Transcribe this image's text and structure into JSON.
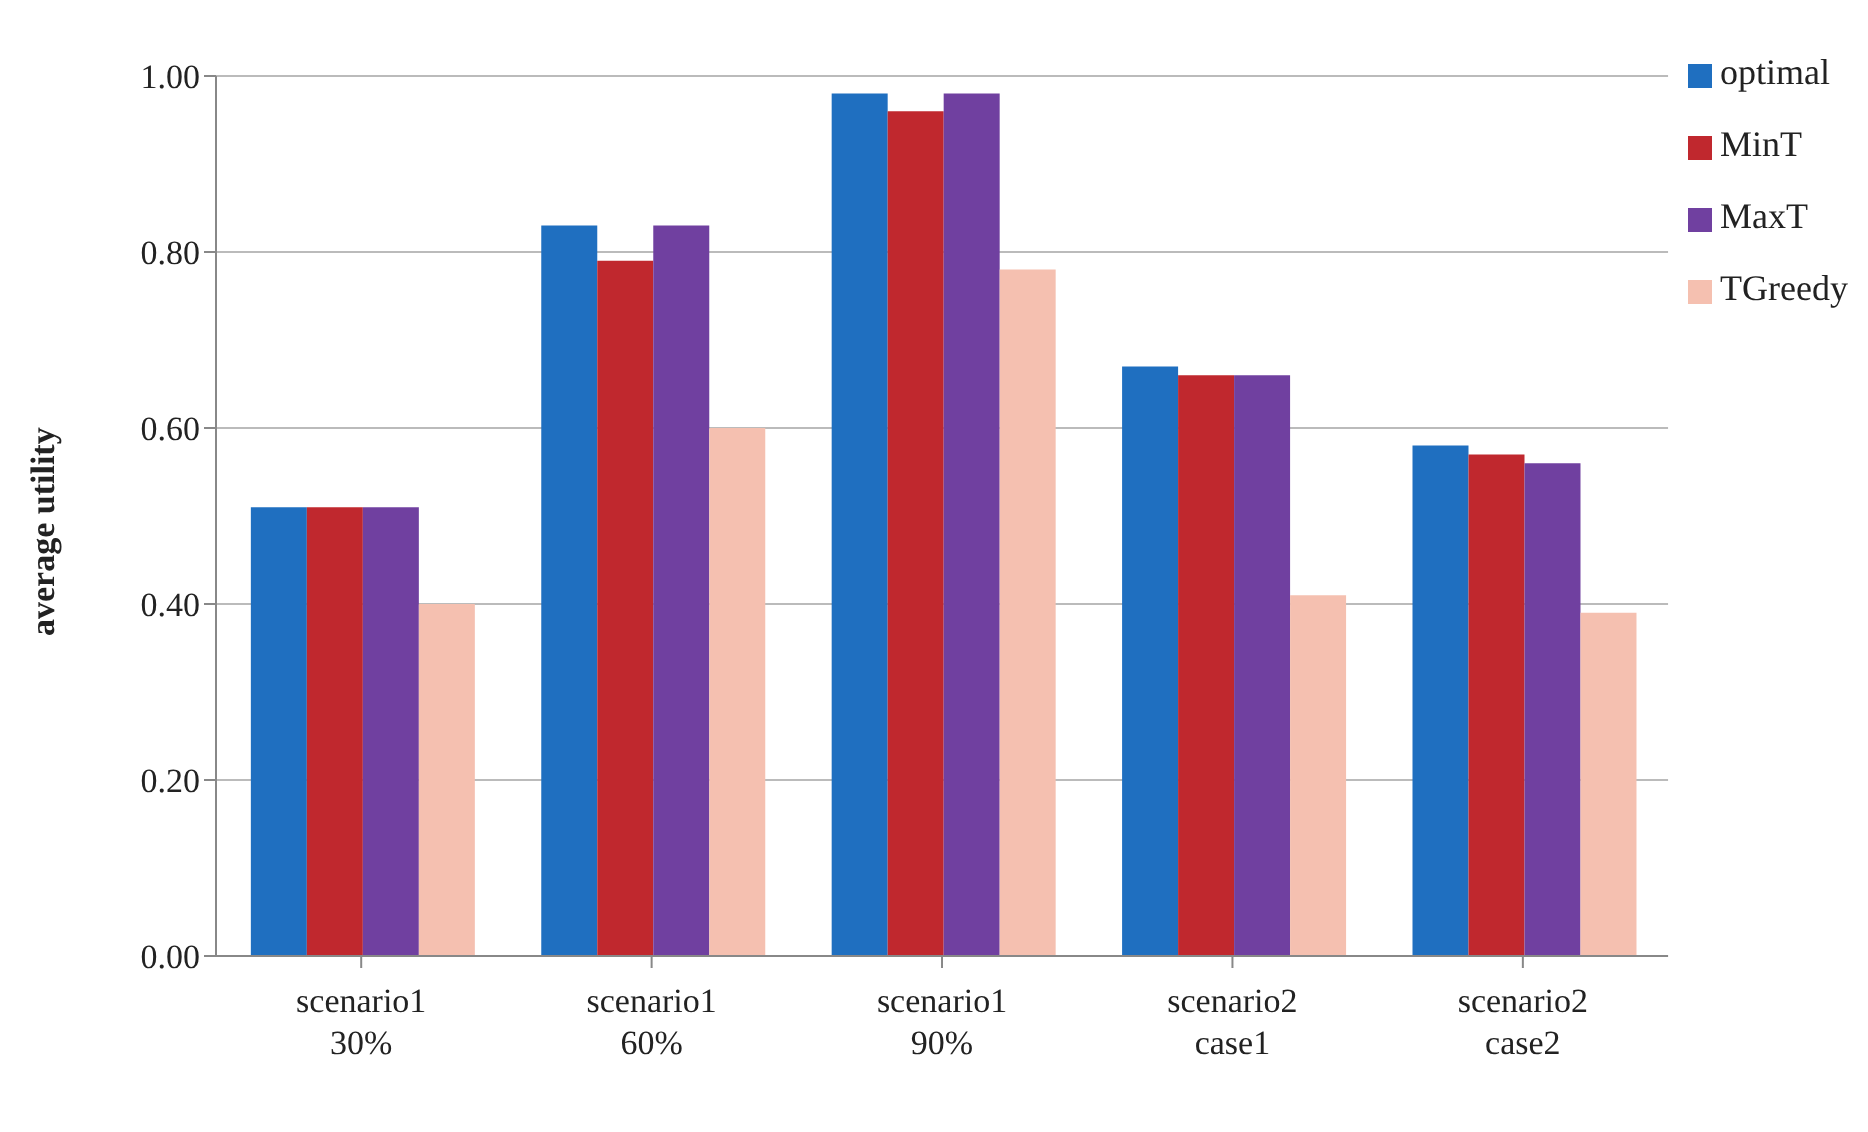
{
  "chart_data": {
    "type": "bar",
    "ylabel": "average utility",
    "categories": [
      "scenario1\n30%",
      "scenario1\n60%",
      "scenario1\n90%",
      "scenario2\ncase1",
      "scenario2\ncase2"
    ],
    "series": [
      {
        "name": "optimal",
        "color": "#1f6fc0",
        "values": [
          0.51,
          0.83,
          0.98,
          0.67,
          0.58
        ]
      },
      {
        "name": "MinT",
        "color": "#c0282e",
        "values": [
          0.51,
          0.79,
          0.96,
          0.66,
          0.57
        ]
      },
      {
        "name": "MaxT",
        "color": "#7040a0",
        "values": [
          0.51,
          0.83,
          0.98,
          0.66,
          0.56
        ]
      },
      {
        "name": "TGreedy",
        "color": "#f5c0b0",
        "values": [
          0.4,
          0.6,
          0.78,
          0.41,
          0.39
        ]
      }
    ],
    "ylim": [
      0,
      1
    ],
    "yticks": [
      {
        "value": 0,
        "label": "0.00"
      },
      {
        "value": 0.2,
        "label": "0.20"
      },
      {
        "value": 0.4,
        "label": "0.40"
      },
      {
        "value": 0.6,
        "label": "0.60"
      },
      {
        "value": 0.8,
        "label": "0.80"
      },
      {
        "value": 1,
        "label": "1.00"
      }
    ],
    "grid": "y",
    "legend": "top right"
  }
}
